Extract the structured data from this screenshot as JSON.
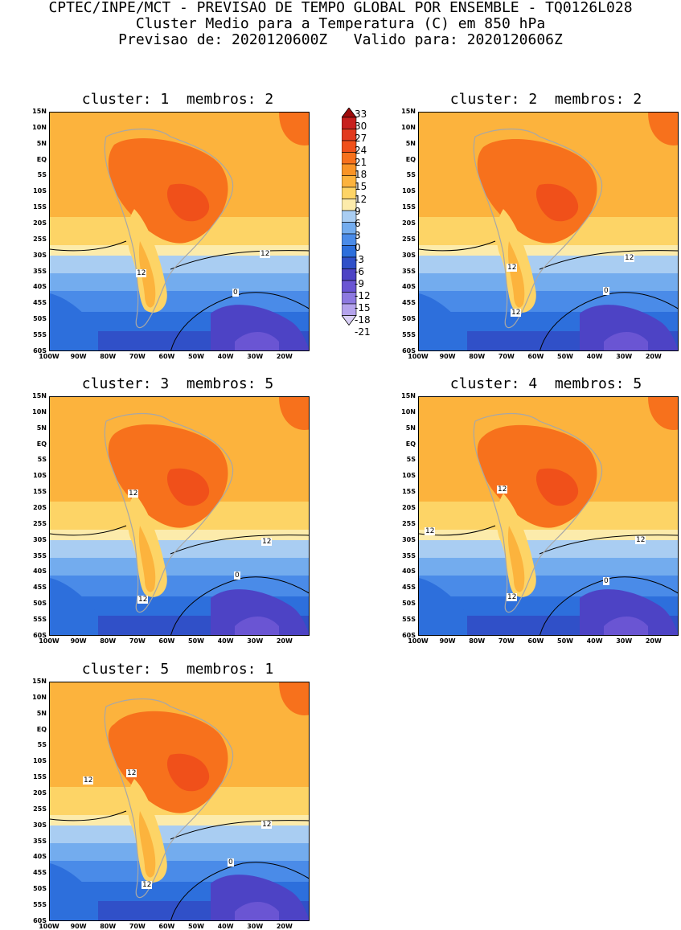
{
  "header": {
    "line1": "CPTEC/INPE/MCT - PREVISAO DE TEMPO GLOBAL POR ENSEMBLE - TQ0126L028",
    "line2": "Cluster Medio para a Temperatura (C) em 850 hPa",
    "line3": "Previsao de: 2020120600Z   Valido para: 2020120606Z"
  },
  "axes": {
    "lat_labels": [
      "15N",
      "10N",
      "5N",
      "EQ",
      "5S",
      "10S",
      "15S",
      "20S",
      "25S",
      "30S",
      "35S",
      "40S",
      "45S",
      "50S",
      "55S",
      "60S"
    ],
    "lon_labels": [
      "100W",
      "90W",
      "80W",
      "70W",
      "60W",
      "50W",
      "40W",
      "30W",
      "20W"
    ]
  },
  "colorbar": {
    "levels": [
      "33",
      "30",
      "27",
      "24",
      "21",
      "18",
      "15",
      "12",
      "9",
      "6",
      "3",
      "0",
      "-3",
      "-6",
      "-9",
      "-12",
      "-15",
      "-18",
      "-21"
    ],
    "colors": [
      "#9e0b0b",
      "#c7201e",
      "#e23a1e",
      "#f0501a",
      "#f7711c",
      "#f99426",
      "#fcb33d",
      "#fdd466",
      "#fcebab",
      "#a9cdf2",
      "#73acee",
      "#4a8be8",
      "#2d6fdc",
      "#3050c8",
      "#4d43c5",
      "#6a55d3",
      "#8d79e0",
      "#b4a3ec",
      "#d9cff6"
    ]
  },
  "panels": [
    {
      "title": "cluster: 1  membros: 2",
      "contour_labels": [
        "12",
        "12",
        "0"
      ]
    },
    {
      "title": "cluster: 2  membros: 2",
      "contour_labels": [
        "12",
        "12",
        "12",
        "0"
      ]
    },
    {
      "title": "cluster: 3  membros: 5",
      "contour_labels": [
        "12",
        "12",
        "12",
        "0"
      ]
    },
    {
      "title": "cluster: 4  membros: 5",
      "contour_labels": [
        "12",
        "12",
        "12",
        "12",
        "0"
      ]
    },
    {
      "title": "cluster: 5  membros: 1",
      "contour_labels": [
        "12",
        "12",
        "12",
        "12",
        "0"
      ]
    }
  ]
}
